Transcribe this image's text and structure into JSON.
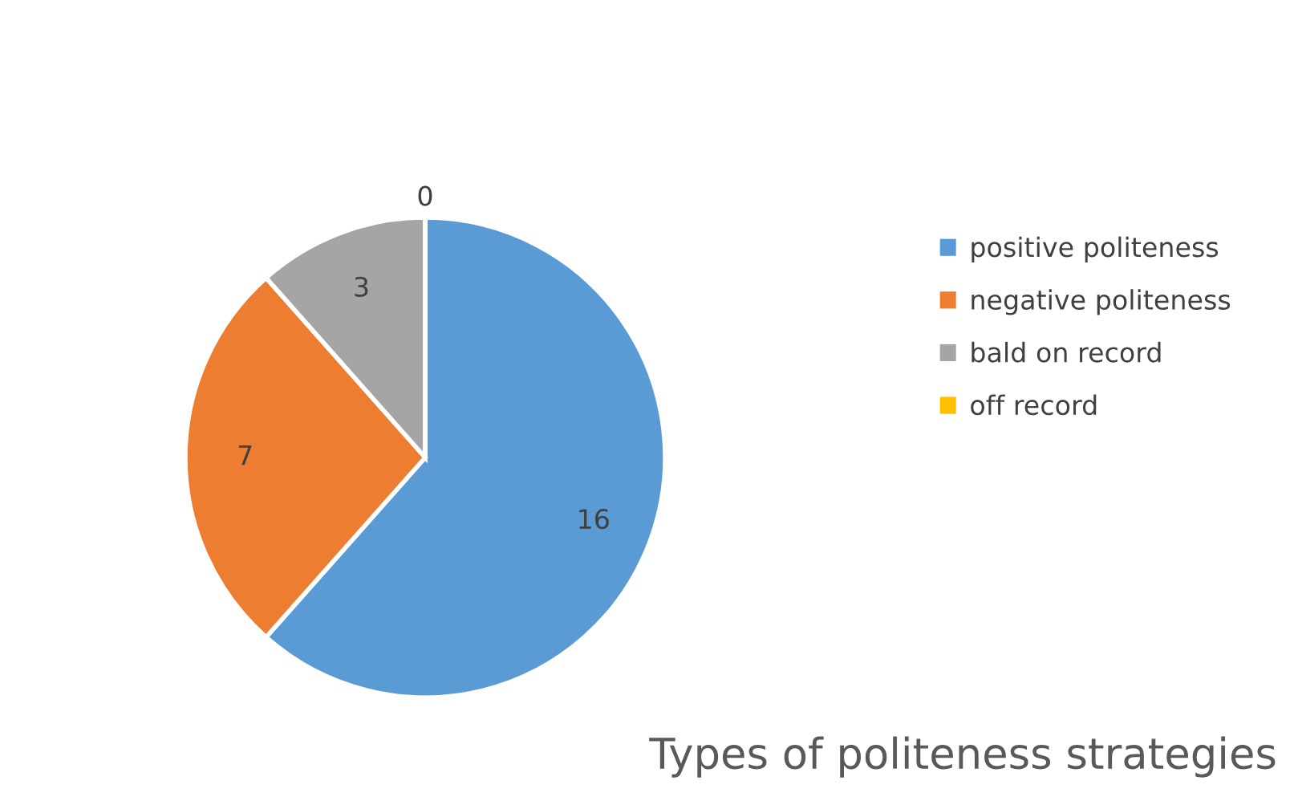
{
  "chart_data": {
    "type": "pie",
    "title": "Types of politeness strategies",
    "categories": [
      "positive politeness",
      "negative politeness",
      "bald on record",
      "off record"
    ],
    "values": [
      16,
      7,
      3,
      0
    ],
    "colors": [
      "#5b9bd5",
      "#ed7d31",
      "#a5a5a5",
      "#ffc000"
    ],
    "value_labels": [
      "16",
      "7",
      "3",
      "0"
    ],
    "legend": "right"
  }
}
